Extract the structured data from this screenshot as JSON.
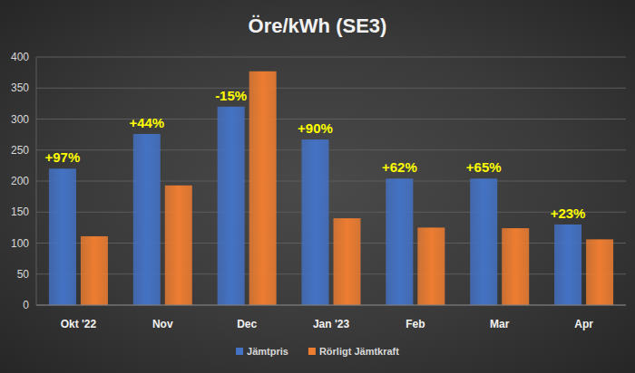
{
  "chart_data": {
    "type": "bar",
    "title": "Öre/kWh (SE3)",
    "categories": [
      "Okt '22",
      "Nov",
      "Dec",
      "Jan '23",
      "Feb",
      "Mar",
      "Apr"
    ],
    "series": [
      {
        "name": "Jämtpris",
        "color": "#4472c4",
        "values": [
          220,
          276,
          320,
          267,
          204,
          204,
          130
        ]
      },
      {
        "name": "Rörligt Jämtkraft",
        "color": "#ed7d31",
        "values": [
          111,
          193,
          377,
          140,
          125,
          124,
          106
        ]
      }
    ],
    "annotations": [
      "+97%",
      "+44%",
      "-15%",
      "+90%",
      "+62%",
      "+65%",
      "+23%"
    ],
    "ylim": [
      0,
      400
    ],
    "yticks": [
      0,
      50,
      100,
      150,
      200,
      250,
      300,
      350,
      400
    ],
    "grid": true,
    "legend": "bottom"
  }
}
